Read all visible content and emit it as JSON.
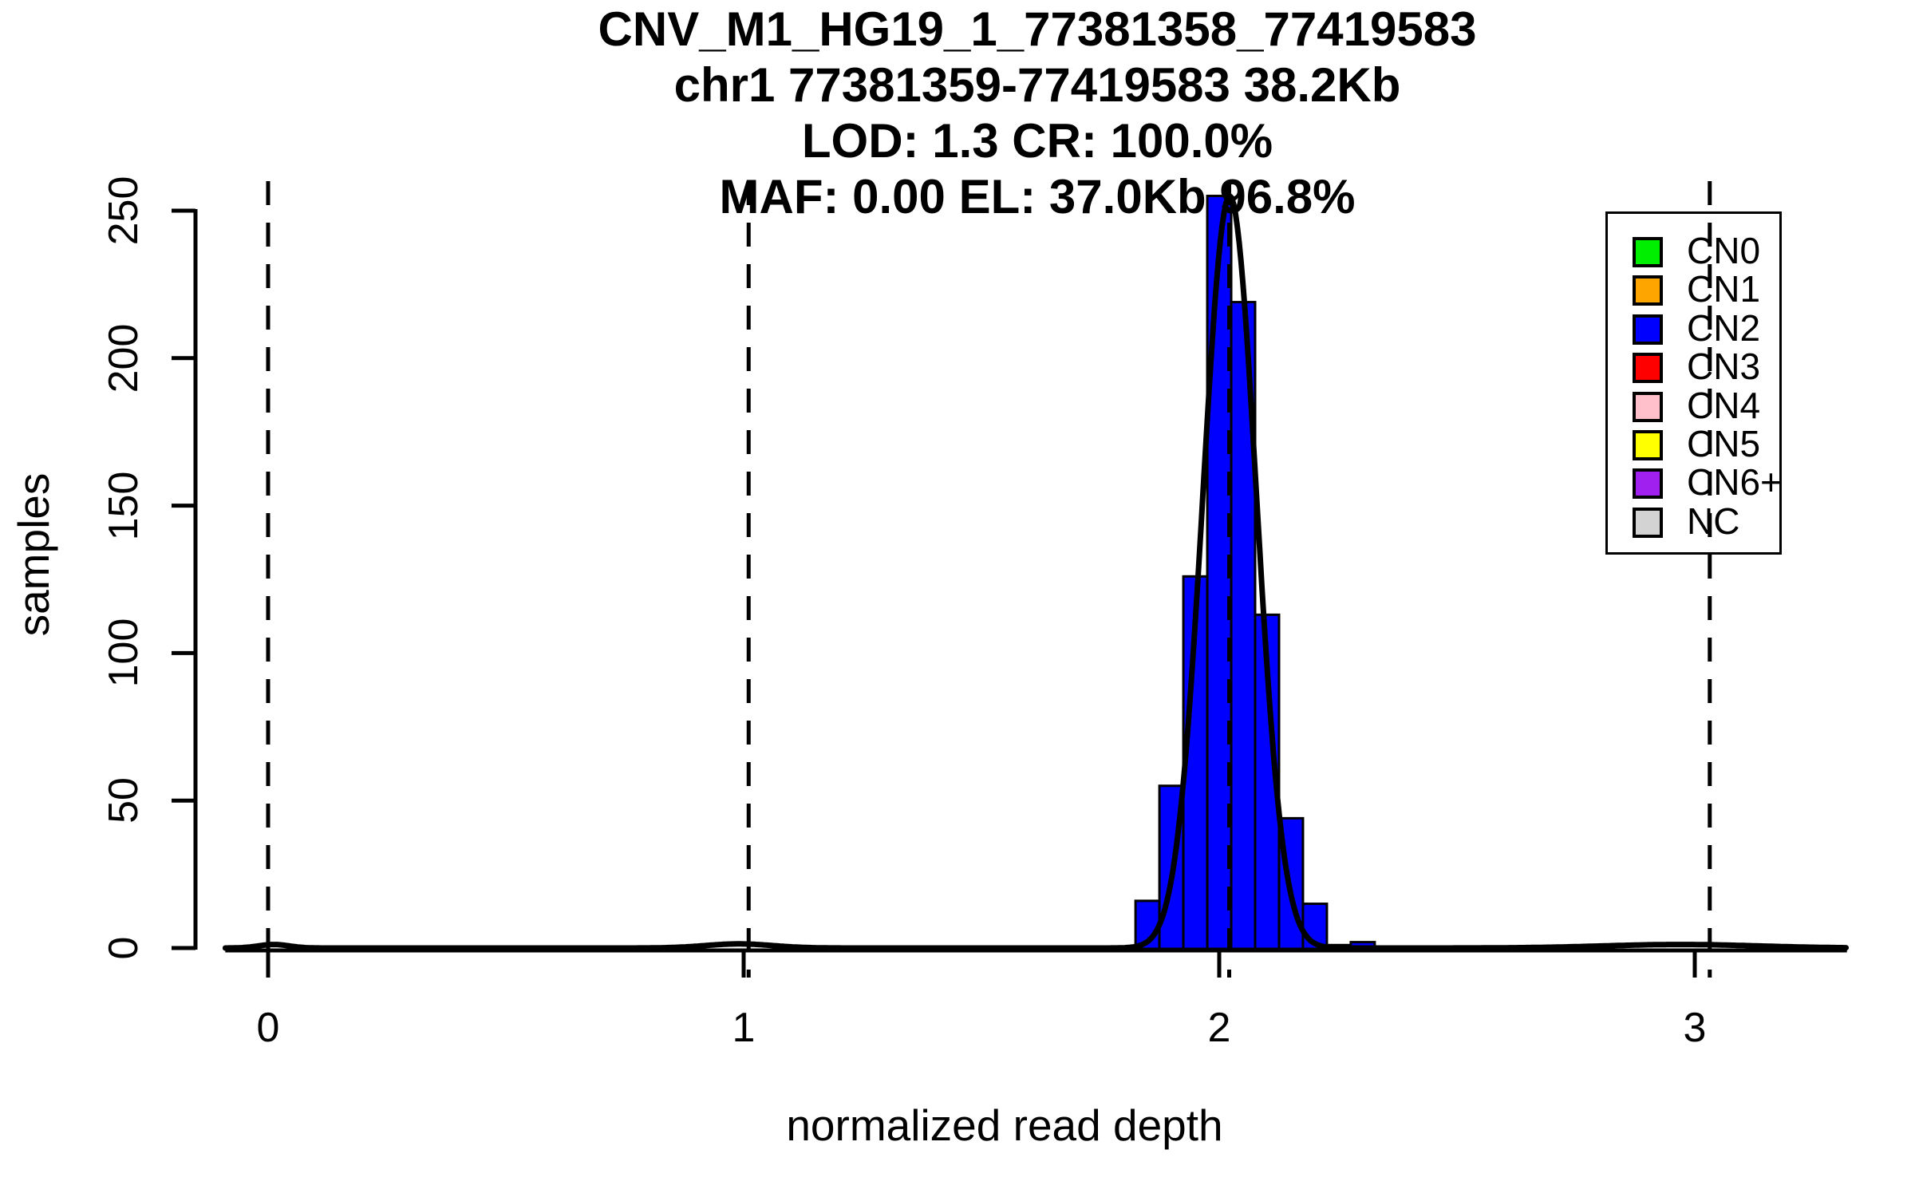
{
  "chart_data": {
    "type": "bar",
    "subtype": "histogram-with-density-fit",
    "title_lines": [
      "CNV_M1_HG19_1_77381358_77419583",
      "chr1 77381359-77419583 38.2Kb",
      "LOD: 1.3 CR: 100.0%",
      "MAF: 0.00 EL: 37.0Kb 96.8%"
    ],
    "xlabel": "normalized read depth",
    "ylabel": "samples",
    "x_ticks": [
      0,
      1,
      2,
      3
    ],
    "y_ticks": [
      0,
      50,
      100,
      150,
      200,
      250
    ],
    "xlim": [
      -0.09,
      3.32
    ],
    "ylim": [
      -10,
      260
    ],
    "grid": false,
    "bins": {
      "start": 1.824,
      "width": 0.0503,
      "counts": [
        16,
        55,
        126,
        255,
        219,
        113,
        44,
        15,
        1,
        2
      ]
    },
    "bar_fill_color": "#0000FF",
    "bar_border_color": "#000000",
    "density_curve_color": "#000000",
    "density_components": [
      {
        "mean": 0.012,
        "sd": 0.032,
        "amplitude": 1.2
      },
      {
        "mean": 0.99,
        "sd": 0.07,
        "amplitude": 1.4
      },
      {
        "mean": 2.022,
        "sd": 0.056,
        "amplitude": 255
      },
      {
        "mean": 2.97,
        "sd": 0.16,
        "amplitude": 1.2
      }
    ],
    "dashed_lines_x": [
      0,
      1.0105,
      2.021,
      3.0315
    ],
    "dashed_line_color": "#000000",
    "axis_color": "#000000",
    "background_color": "#FFFFFF",
    "legend": {
      "position": "top-right",
      "items": [
        {
          "label": "CN0",
          "color": "#00EE00"
        },
        {
          "label": "CN1",
          "color": "#FFA500"
        },
        {
          "label": "CN2",
          "color": "#0000FF"
        },
        {
          "label": "CN3",
          "color": "#FF0000"
        },
        {
          "label": "CN4",
          "color": "#FFC0CB"
        },
        {
          "label": "CN5",
          "color": "#FFFF00"
        },
        {
          "label": "CN6+",
          "color": "#A020F0"
        },
        {
          "label": "NC",
          "color": "#D3D3D3"
        }
      ]
    }
  }
}
